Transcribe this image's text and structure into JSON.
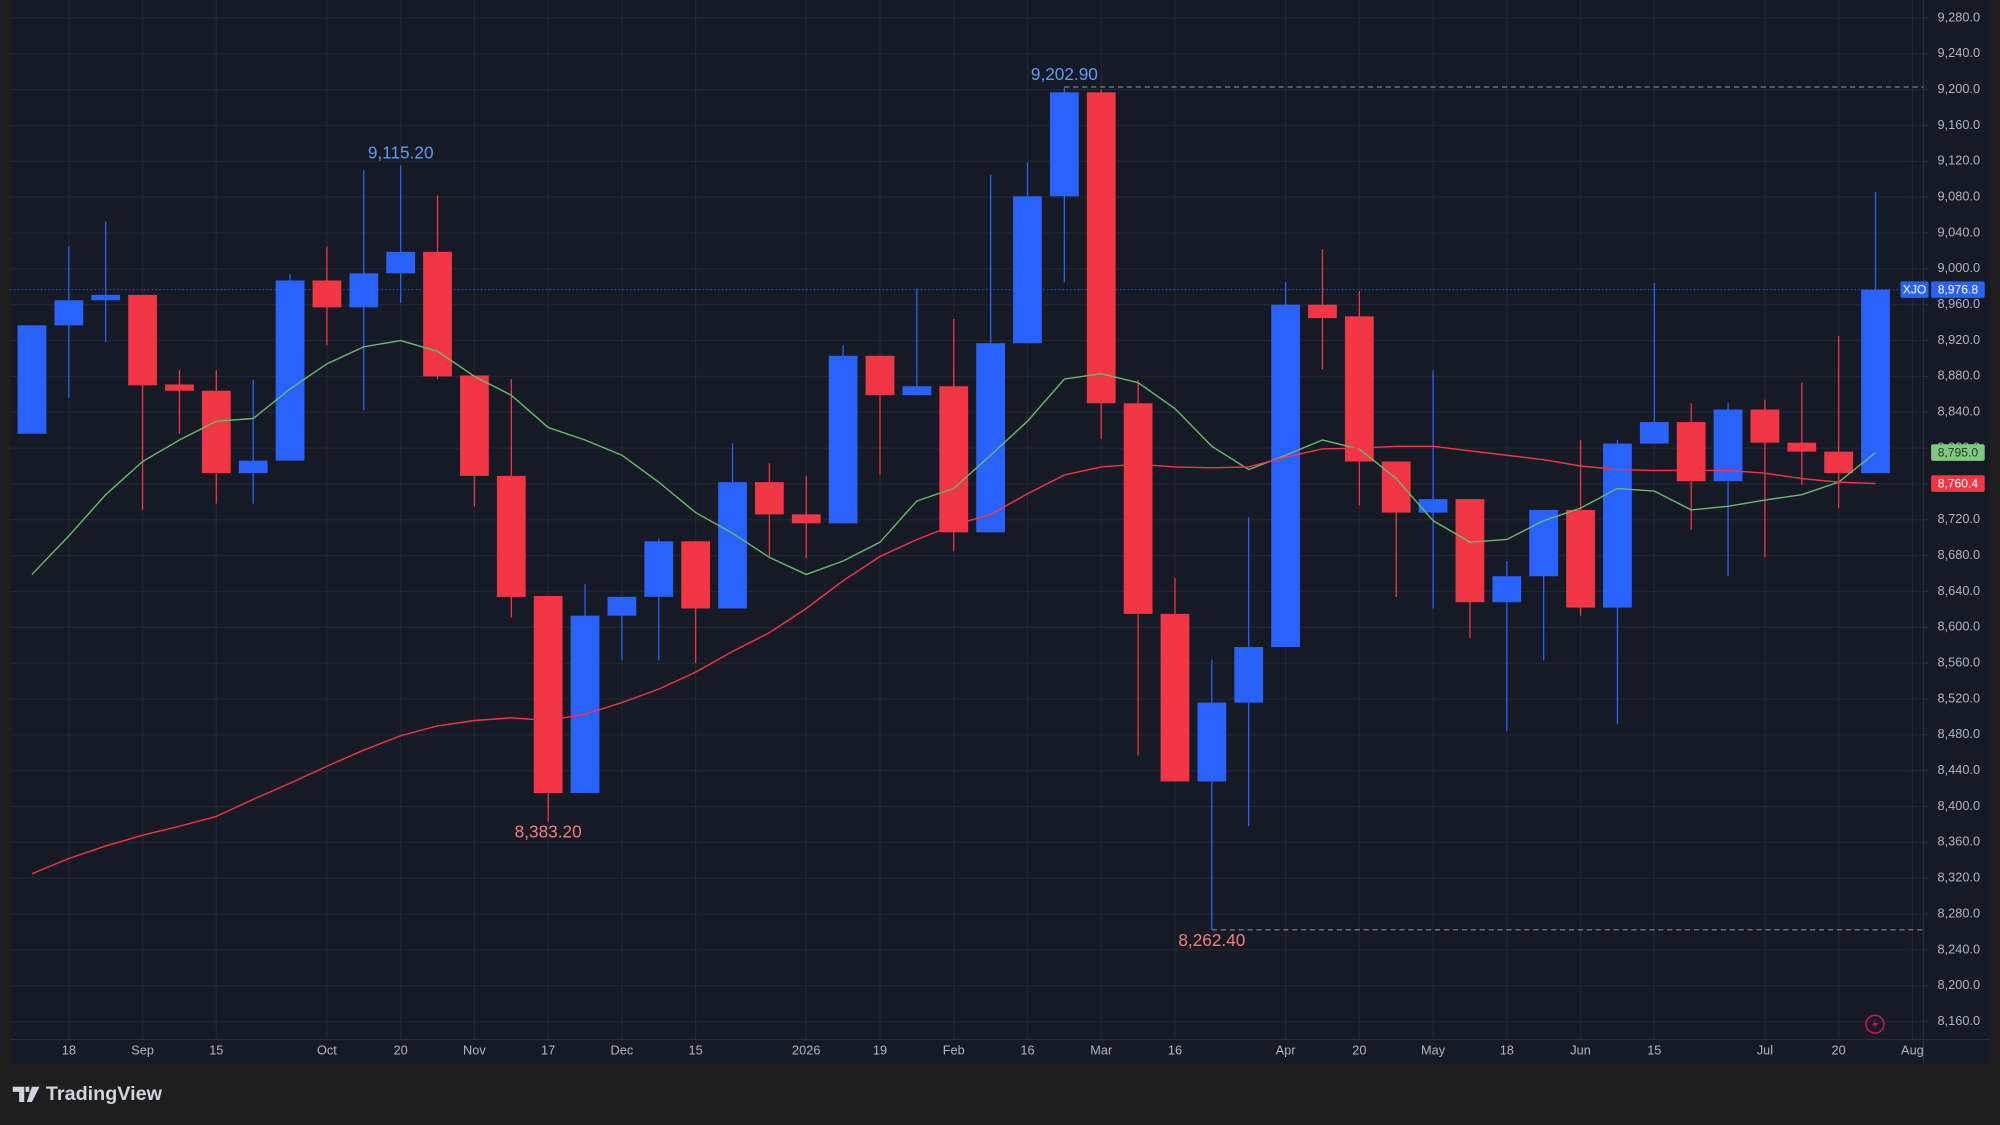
{
  "brand": "TradingView",
  "chart_data": {
    "type": "candlestick",
    "x": [
      0,
      1,
      2,
      3,
      4,
      5,
      6,
      7,
      8,
      9,
      10,
      11,
      12,
      13,
      14,
      15,
      16,
      17,
      18,
      19,
      20,
      21,
      22,
      23,
      24,
      25,
      26,
      27,
      28,
      29,
      30,
      31,
      32,
      33,
      34,
      35,
      36,
      37,
      38,
      39,
      40,
      41,
      42,
      43,
      44,
      45,
      46,
      47,
      48,
      49,
      50
    ],
    "xlim": [
      -0.59,
      51.3
    ],
    "xticks": [
      {
        "value": 1,
        "label": "18"
      },
      {
        "value": 3,
        "label": "Sep"
      },
      {
        "value": 5,
        "label": "15"
      },
      {
        "value": 8,
        "label": "Oct"
      },
      {
        "value": 10,
        "label": "20"
      },
      {
        "value": 12,
        "label": "Nov"
      },
      {
        "value": 14,
        "label": "17"
      },
      {
        "value": 16,
        "label": "Dec"
      },
      {
        "value": 18,
        "label": "15"
      },
      {
        "value": 21,
        "label": "2026"
      },
      {
        "value": 23,
        "label": "19"
      },
      {
        "value": 25,
        "label": "Feb"
      },
      {
        "value": 27,
        "label": "16"
      },
      {
        "value": 29,
        "label": "Mar"
      },
      {
        "value": 31,
        "label": "16"
      },
      {
        "value": 34,
        "label": "Apr"
      },
      {
        "value": 36,
        "label": "20"
      },
      {
        "value": 38,
        "label": "May"
      },
      {
        "value": 40,
        "label": "18"
      },
      {
        "value": 42,
        "label": "Jun"
      },
      {
        "value": 44,
        "label": "15"
      },
      {
        "value": 47,
        "label": "Jul"
      },
      {
        "value": 49,
        "label": "20"
      },
      {
        "value": 51,
        "label": "Aug"
      }
    ],
    "ylim": [
      8140,
      9300
    ],
    "yticks": [
      {
        "value": 8160,
        "label": "8,160.0"
      },
      {
        "value": 8200,
        "label": "8,200.0"
      },
      {
        "value": 8240,
        "label": "8,240.0"
      },
      {
        "value": 8280,
        "label": "8,280.0"
      },
      {
        "value": 8320,
        "label": "8,320.0"
      },
      {
        "value": 8360,
        "label": "8,360.0"
      },
      {
        "value": 8400,
        "label": "8,400.0"
      },
      {
        "value": 8440,
        "label": "8,440.0"
      },
      {
        "value": 8480,
        "label": "8,480.0"
      },
      {
        "value": 8520,
        "label": "8,520.0"
      },
      {
        "value": 8560,
        "label": "8,560.0"
      },
      {
        "value": 8600,
        "label": "8,600.0"
      },
      {
        "value": 8640,
        "label": "8,640.0"
      },
      {
        "value": 8680,
        "label": "8,680.0"
      },
      {
        "value": 8720,
        "label": "8,720.0"
      },
      {
        "value": 8760,
        "label": "8,760.0"
      },
      {
        "value": 8800,
        "label": "8,800.0"
      },
      {
        "value": 8840,
        "label": "8,840.0"
      },
      {
        "value": 8880,
        "label": "8,880.0"
      },
      {
        "value": 8920,
        "label": "8,920.0"
      },
      {
        "value": 8960,
        "label": "8,960.0"
      },
      {
        "value": 9000,
        "label": "9,000.0"
      },
      {
        "value": 9040,
        "label": "9,040.0"
      },
      {
        "value": 9080,
        "label": "9,080.0"
      },
      {
        "value": 9120,
        "label": "9,120.0"
      },
      {
        "value": 9160,
        "label": "9,160.0"
      },
      {
        "value": 9200,
        "label": "9,200.0"
      },
      {
        "value": 9240,
        "label": "9,240.0"
      },
      {
        "value": 9280,
        "label": "9,280.0"
      }
    ],
    "grid": true,
    "color_up": "#2962ff",
    "color_down": "#f23645",
    "open": [
      8816,
      8937,
      8965,
      8971,
      8871,
      8864,
      8772,
      8786,
      8987,
      8957,
      8995,
      9019,
      8881,
      8769,
      8635,
      8415,
      8613,
      8634,
      8696,
      8621,
      8762,
      8726,
      8716,
      8903,
      8859,
      8869,
      8706,
      8917,
      9081,
      9197,
      8850,
      8615,
      8428,
      8516,
      8578,
      8960,
      8947,
      8785,
      8728,
      8743,
      8628,
      8657,
      8731,
      8622,
      8805,
      8829,
      8763,
      8843,
      8806,
      8796,
      8772
    ],
    "high": [
      8937,
      9025,
      9053,
      8971,
      8887,
      8887,
      8876,
      8994,
      9025,
      9110,
      9115.2,
      9082,
      8881,
      8877,
      8635,
      8648,
      8634,
      8699,
      8696,
      8805,
      8783,
      8769,
      8915,
      8903,
      8978,
      8944,
      9105,
      9119,
      9202.9,
      9200,
      8876,
      8655,
      8564,
      8723,
      8985,
      9022,
      8975,
      8785,
      8887,
      8743,
      8674,
      8731,
      8809,
      8809,
      8984,
      8850,
      8850,
      8854,
      8873,
      8925,
      9086
    ],
    "low": [
      8816,
      8856,
      8918,
      8731,
      8816,
      8738,
      8738,
      8786,
      8915,
      8842,
      8962,
      8877,
      8735,
      8611,
      8383.2,
      8415,
      8563,
      8563,
      8560,
      8621,
      8679,
      8677,
      8716,
      8770,
      8859,
      8685,
      8706,
      8917,
      8985,
      8810,
      8457,
      8428,
      8262.4,
      8378,
      8578,
      8888,
      8736,
      8634,
      8621,
      8588,
      8484,
      8563,
      8613,
      8492,
      8805,
      8709,
      8657,
      8678,
      8759,
      8733,
      8772
    ],
    "close": [
      8937,
      8965,
      8971,
      8870,
      8864,
      8772,
      8786,
      8987,
      8957,
      8995,
      9019,
      8880,
      8769,
      8634,
      8415,
      8613,
      8634,
      8696,
      8621,
      8762,
      8726,
      8716,
      8903,
      8859,
      8869,
      8706,
      8917,
      9081,
      9197,
      8850,
      8615,
      8428,
      8516,
      8578,
      8960,
      8945,
      8785,
      8728,
      8743,
      8628,
      8657,
      8731,
      8622,
      8805,
      8829,
      8763,
      8843,
      8806,
      8796,
      8772,
      8976.8
    ],
    "lines": [
      {
        "color": "#66bb6a",
        "values": [
          8659,
          8702,
          8748,
          8785,
          8809,
          8830,
          8833,
          8866,
          8894,
          8913,
          8920,
          8908,
          8880,
          8859,
          8823,
          8809,
          8792,
          8762,
          8728,
          8705,
          8678,
          8659,
          8674,
          8695,
          8741,
          8755,
          8792,
          8830,
          8877,
          8883,
          8873,
          8844,
          8802,
          8776,
          8792,
          8809,
          8799,
          8766,
          8719,
          8695,
          8698,
          8719,
          8733,
          8755,
          8752,
          8731,
          8735,
          8742,
          8748,
          8762,
          8795.0
        ]
      },
      {
        "color": "#f23645",
        "values": [
          8325,
          8342,
          8356,
          8368,
          8378,
          8389,
          8408,
          8426,
          8445,
          8463,
          8479,
          8490,
          8496,
          8499,
          8496,
          8503,
          8516,
          8531,
          8550,
          8573,
          8594,
          8621,
          8652,
          8679,
          8698,
          8714,
          8726,
          8749,
          8770,
          8779,
          8782,
          8779,
          8778,
          8779,
          8790,
          8799,
          8800,
          8802,
          8802,
          8797,
          8792,
          8787,
          8780,
          8776,
          8775,
          8775,
          8775,
          8772,
          8766,
          8762,
          8760.4
        ]
      }
    ],
    "annotations": [
      {
        "label": "9,202.90",
        "value": 9202.9,
        "x": 28,
        "position": "above",
        "color": "#5b9cf6",
        "line": true
      },
      {
        "label": "9,115.20",
        "value": 9115.2,
        "x": 10,
        "position": "above",
        "color": "#5b9cf6",
        "line": false
      },
      {
        "label": "8,383.20",
        "value": 8383.2,
        "x": 14,
        "position": "below",
        "color": "#f77c80",
        "line": false
      },
      {
        "label": "8,262.40",
        "value": 8262.4,
        "x": 32,
        "position": "below",
        "color": "#f77c80",
        "line": true
      }
    ],
    "price_tags": [
      {
        "name": "XJO",
        "label": "8,976.8",
        "value": 8976.8,
        "color": "#2962ff",
        "text_color": "#ffffff",
        "line": true
      },
      {
        "label": "8,795.0",
        "value": 8795.0,
        "color": "#81c784",
        "text_color": "#1b3d1f",
        "line": false
      },
      {
        "label": "8,760.4",
        "value": 8760.4,
        "color": "#f23645",
        "text_color": "#ffffff",
        "line": false
      }
    ]
  }
}
